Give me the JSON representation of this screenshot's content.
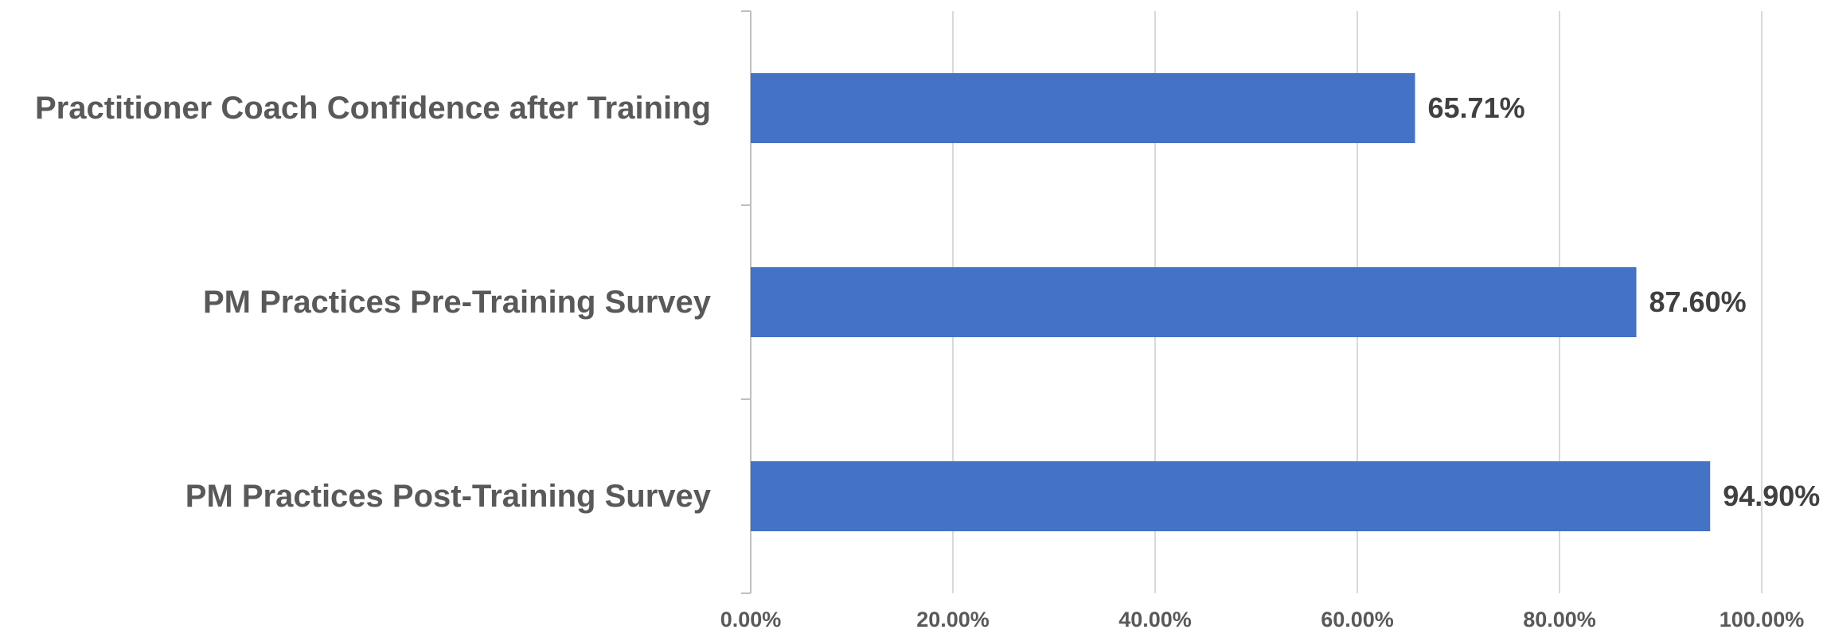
{
  "chart_data": {
    "type": "bar",
    "orientation": "horizontal",
    "categories": [
      "Practitioner Coach Confidence after Training",
      "PM Practices Pre-Training Survey",
      "PM Practices Post-Training Survey"
    ],
    "values": [
      65.71,
      87.6,
      94.9
    ],
    "value_labels": [
      "65.71%",
      "87.60%",
      "94.90%"
    ],
    "x_ticks": [
      0,
      20,
      40,
      60,
      80,
      100
    ],
    "x_tick_labels": [
      "0.00%",
      "20.00%",
      "40.00%",
      "60.00%",
      "80.00%",
      "100.00%"
    ],
    "xlim": [
      0,
      100
    ],
    "title": "",
    "xlabel": "",
    "ylabel": "",
    "grid": true,
    "legend": "none",
    "colors": {
      "bar": "#4472C4",
      "category_text": "#595959",
      "value_text": "#404040",
      "tick_text": "#595959",
      "gridline": "#D9D9D9",
      "axis": "#BFBFBF"
    }
  }
}
